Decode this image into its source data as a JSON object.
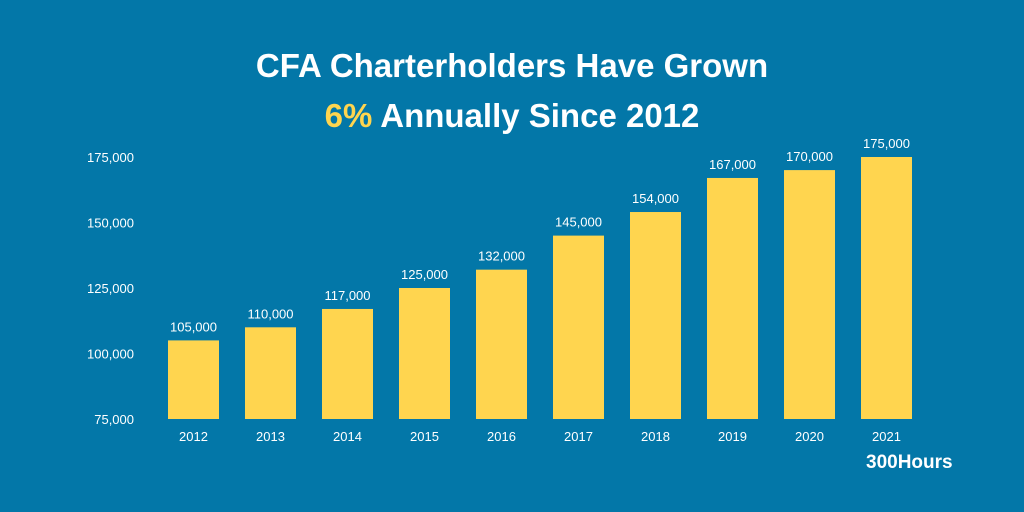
{
  "header": {
    "title_line1": "CFA Charterholders Have Grown",
    "title_accent": "6%",
    "title_line2_rest": " Annually Since 2012"
  },
  "brand": "300Hours",
  "colors": {
    "background": "#0377a8",
    "bar": "#ffd54f",
    "text": "#ffffff",
    "accent": "#ffd54f"
  },
  "chart_data": {
    "type": "bar",
    "title": "CFA Charterholders Have Grown 6% Annually Since 2012",
    "categories": [
      "2012",
      "2013",
      "2014",
      "2015",
      "2016",
      "2017",
      "2018",
      "2019",
      "2020",
      "2021"
    ],
    "values": [
      105000,
      110000,
      117000,
      125000,
      132000,
      145000,
      154000,
      167000,
      170000,
      175000
    ],
    "value_labels": [
      "105,000",
      "110,000",
      "117,000",
      "125,000",
      "132,000",
      "145,000",
      "154,000",
      "167,000",
      "170,000",
      "175,000"
    ],
    "ylim": [
      75000,
      175000
    ],
    "yticks": [
      75000,
      100000,
      125000,
      150000,
      175000
    ],
    "ytick_labels": [
      "75,000",
      "100,000",
      "125,000",
      "150,000",
      "175,000"
    ],
    "xlabel": "",
    "ylabel": "",
    "grid": false,
    "legend": "none"
  }
}
